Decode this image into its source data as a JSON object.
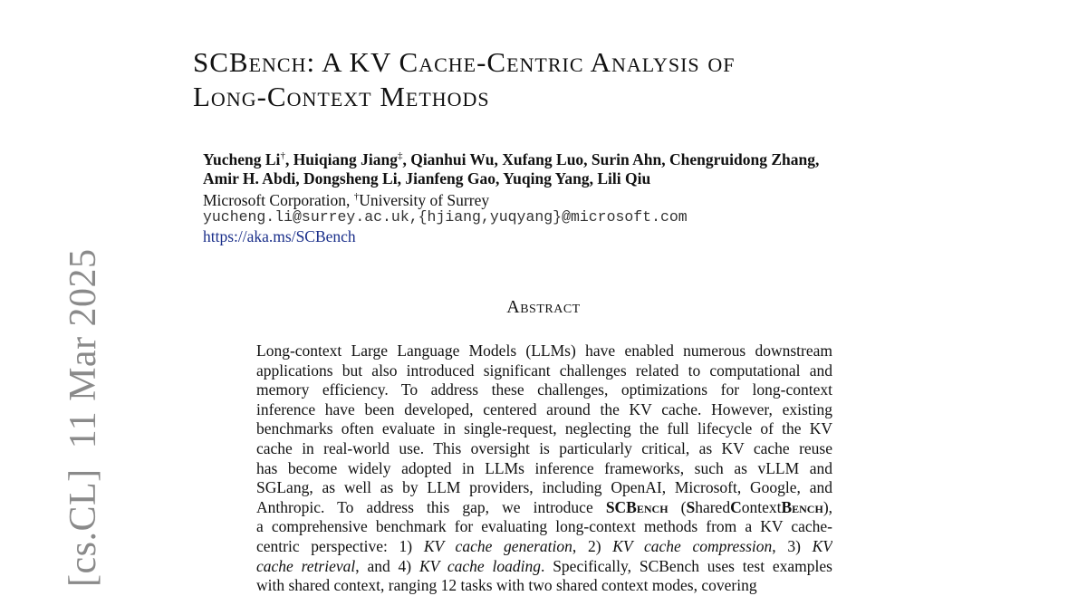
{
  "arxiv_stamp": {
    "category": "[cs.CL]",
    "date": "11 Mar 2025"
  },
  "title": {
    "line1": "SCBench:  A KV Cache-Centric Analysis of",
    "line2": "Long-Context Methods"
  },
  "authors": {
    "line1": [
      {
        "name": "Yucheng Li",
        "mark": "†"
      },
      {
        "name": ", Huiqiang Jiang",
        "mark": "‡"
      },
      {
        "name": ", Qianhui Wu, Xufang Luo, Surin Ahn, Chengruidong Zhang,",
        "mark": ""
      }
    ],
    "line2": "Amir H. Abdi, Dongsheng Li, Jianfeng Gao, Yuqing Yang, Lili Qiu"
  },
  "affiliation": {
    "org1": "Microsoft Corporation, ",
    "mark": "†",
    "org2": "University of Surrey"
  },
  "email": "yucheng.li@surrey.ac.uk,{hjiang,yuqyang}@microsoft.com",
  "link": "https://aka.ms/SCBench",
  "abstract": {
    "heading": "Abstract",
    "lines": [
      [
        {
          "t": "Long-context Large Language Models (LLMs) have enabled numerous downstream"
        }
      ],
      [
        {
          "t": "applications but also introduced significant challenges related to computational and"
        }
      ],
      [
        {
          "t": "memory efficiency.  To address these challenges, optimizations for long-context"
        }
      ],
      [
        {
          "t": "inference have been developed, centered around the KV cache. However, existing"
        }
      ],
      [
        {
          "t": "benchmarks often evaluate in single-request, neglecting the full lifecycle of the KV"
        }
      ],
      [
        {
          "t": "cache in real-world use. This oversight is particularly critical, as KV cache reuse"
        }
      ],
      [
        {
          "t": "has become widely adopted in LLMs inference frameworks, such as vLLM and"
        }
      ],
      [
        {
          "t": "SGLang, as well as by LLM providers, including OpenAI, Microsoft, Google, and"
        }
      ],
      [
        {
          "t": "Anthropic. To address this gap, we introduce "
        },
        {
          "t": "SCBench",
          "s": "b sc"
        },
        {
          "t": " ("
        },
        {
          "t": "S",
          "s": "b"
        },
        {
          "t": "hared"
        },
        {
          "t": "C",
          "s": "b"
        },
        {
          "t": "ontext"
        },
        {
          "t": "Bench",
          "s": "b sc"
        },
        {
          "t": "),"
        }
      ],
      [
        {
          "t": "a comprehensive benchmark for evaluating long-context methods from a KV cache-"
        }
      ],
      [
        {
          "t": "centric perspective:  1) "
        },
        {
          "t": "KV cache generation",
          "s": "it"
        },
        {
          "t": ", 2) "
        },
        {
          "t": "KV cache compression",
          "s": "it"
        },
        {
          "t": ", 3) "
        },
        {
          "t": "KV",
          "s": "it"
        }
      ],
      [
        {
          "t": "cache retrieval",
          "s": "it"
        },
        {
          "t": ", and 4) "
        },
        {
          "t": "KV cache loading",
          "s": "it"
        },
        {
          "t": ". Specifically, SCBench uses test examples"
        }
      ],
      [
        {
          "t": "with shared context, ranging 12 tasks with two shared context modes, covering"
        }
      ]
    ]
  }
}
